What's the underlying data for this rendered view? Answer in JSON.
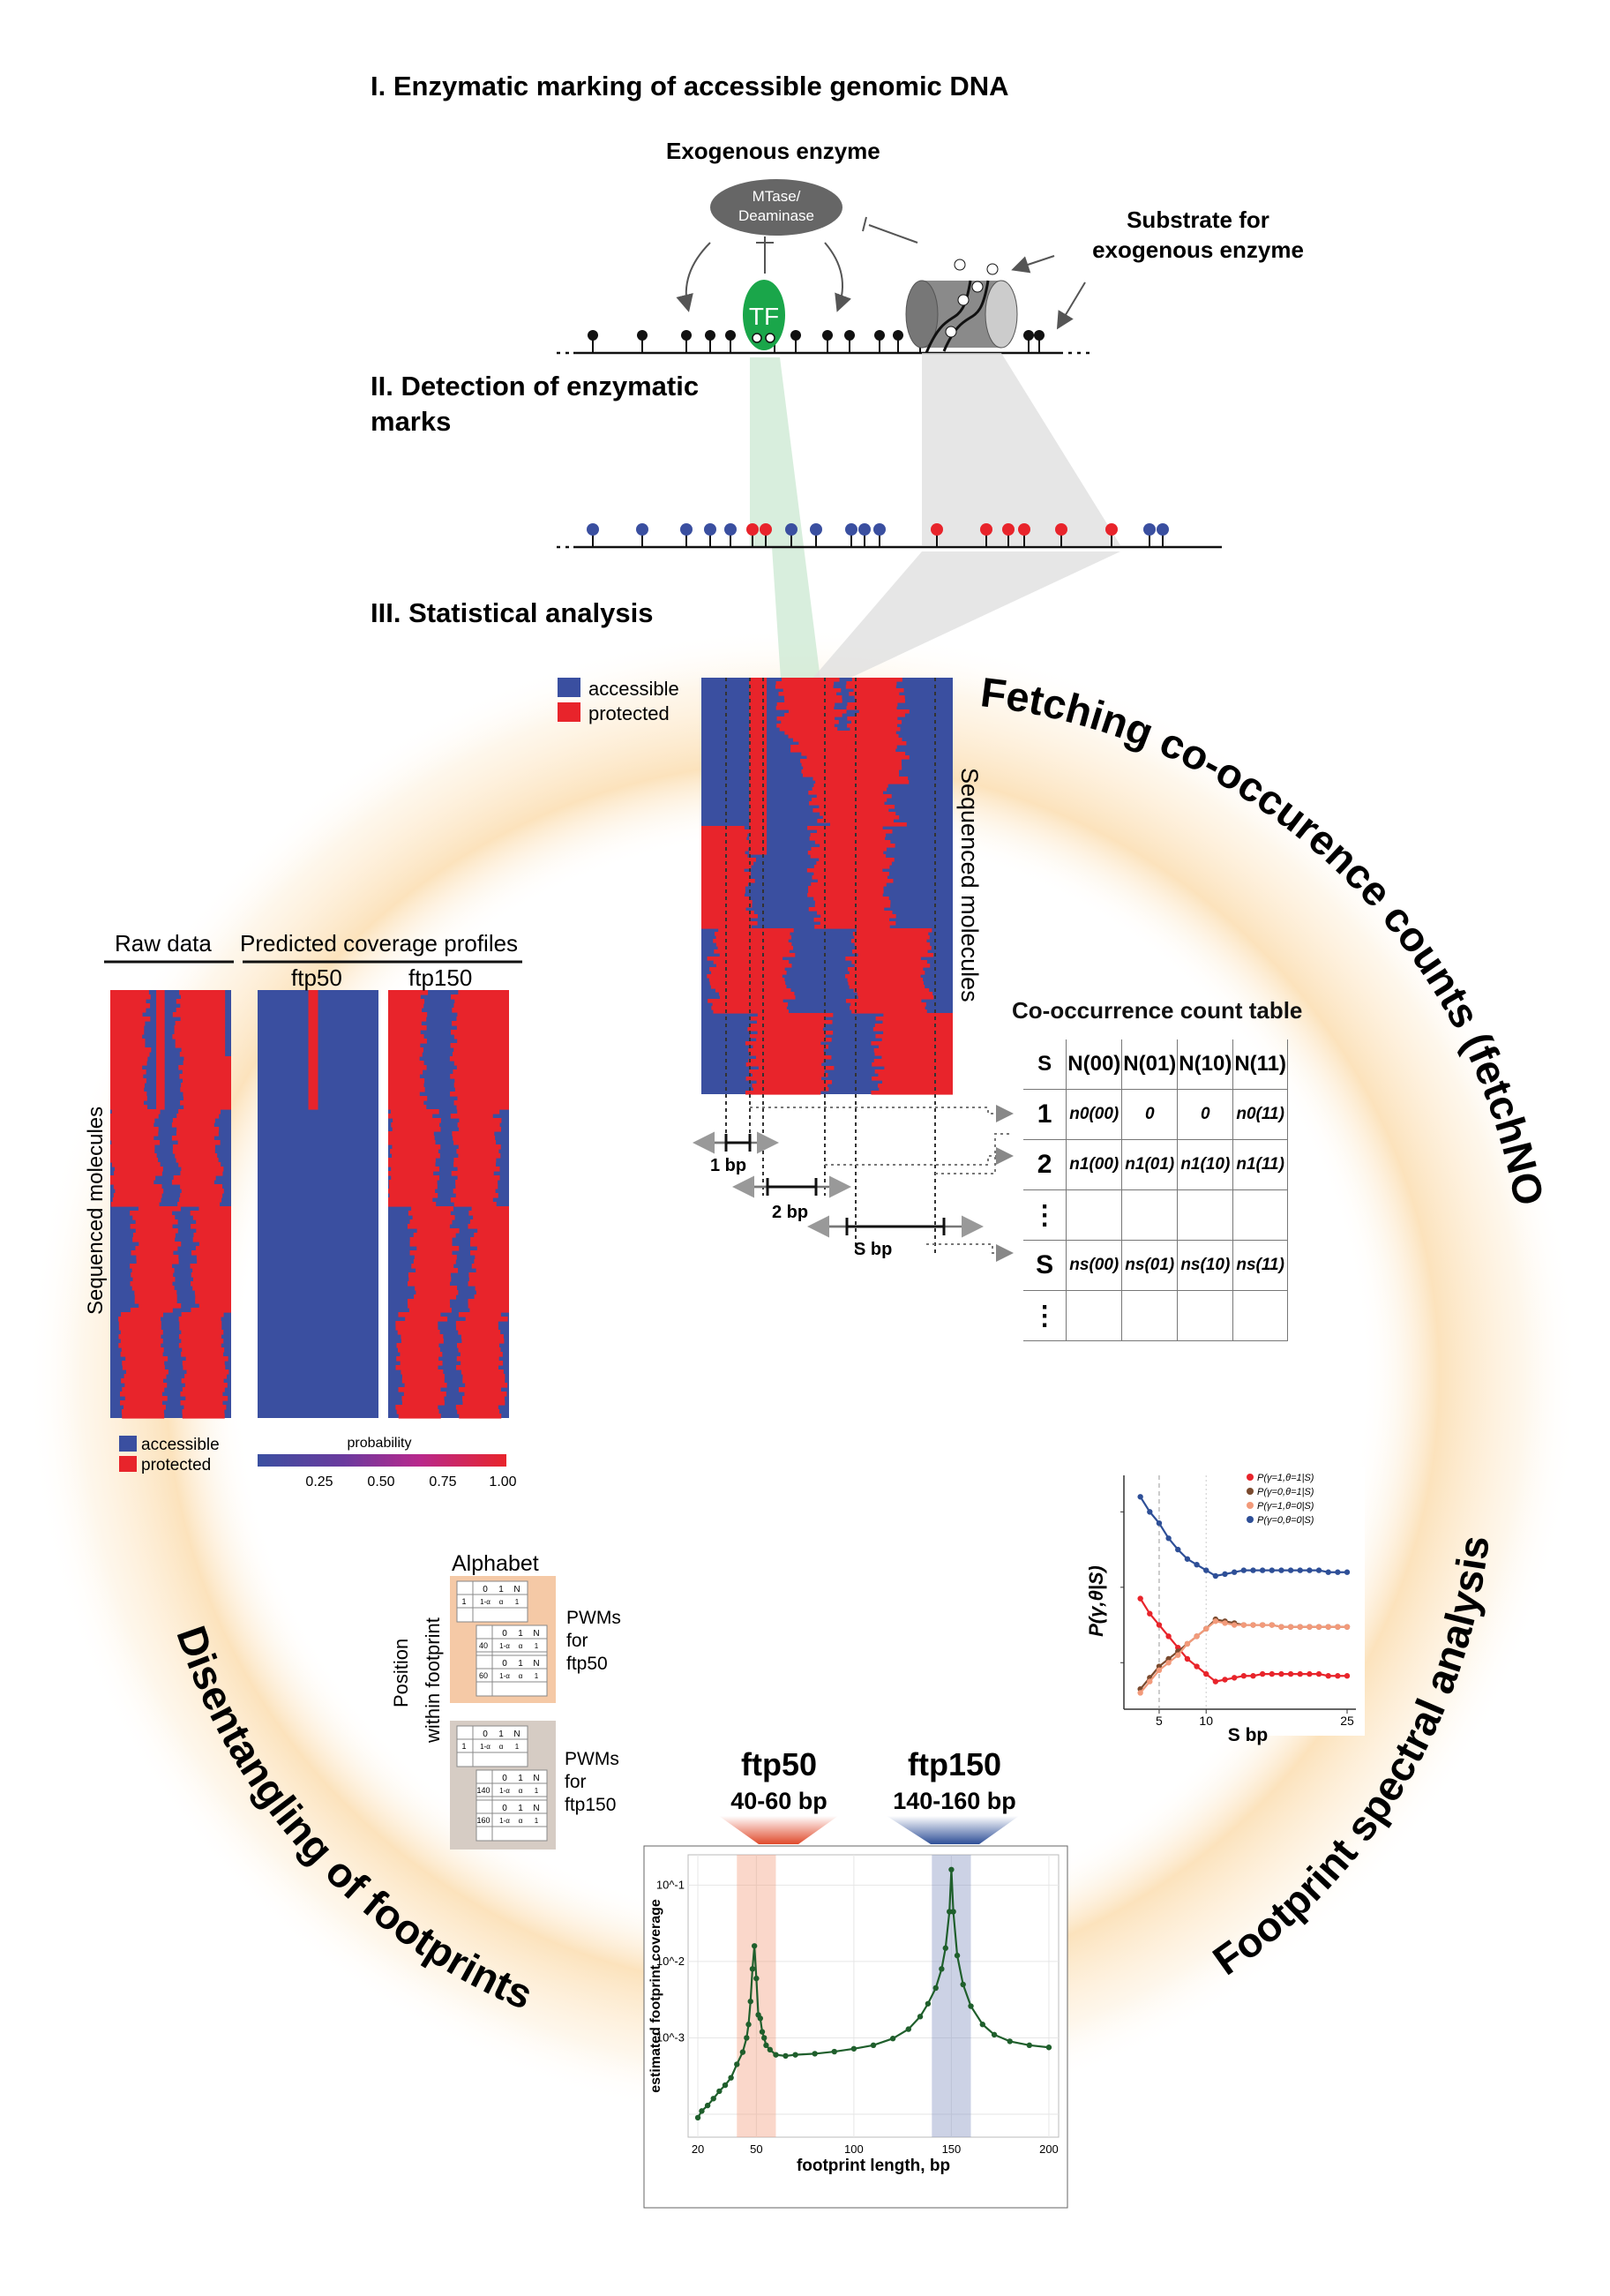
{
  "sections": {
    "step1": "I. Enzymatic marking of accessible genomic DNA",
    "step2_line1": "II. Detection of enzymatic",
    "step2_line2": "marks",
    "step3": "III. Statistical analysis"
  },
  "enzyme": {
    "title": "Exogenous enzyme",
    "line1": "MTase/",
    "line2": "Deaminase",
    "tf_label": "TF",
    "substrate_line1": "Substrate for",
    "substrate_line2": "exogenous enzyme"
  },
  "colors": {
    "accessible": "#3a4fa0",
    "protected": "#e8242b",
    "tf_green": "#1aa64a",
    "glow": "#fbd9a6",
    "fit_green": "#1f5f2c"
  },
  "heatmap": {
    "legend_accessible": "accessible",
    "legend_protected": "protected",
    "ylabel": "Sequenced molecules",
    "dist_1": "1 bp",
    "dist_2": "2 bp",
    "dist_s": "S bp"
  },
  "count_table": {
    "title": "Co-occurrence count table",
    "header": [
      "S",
      "N(00)",
      "N(01)",
      "N(10)",
      "N(11)"
    ],
    "rows": [
      [
        "1",
        "n0(00)",
        "0",
        "0",
        "n0(11)"
      ],
      [
        "2",
        "n1(00)",
        "n1(01)",
        "n1(10)",
        "n1(11)"
      ],
      [
        "⋮",
        "",
        "",
        "",
        ""
      ],
      [
        "S",
        "ns(00)",
        "ns(01)",
        "ns(10)",
        "ns(11)"
      ],
      [
        "⋮",
        "",
        "",
        "",
        ""
      ]
    ]
  },
  "arcs": {
    "fetch": "Fetching co-occurence counts (fetchNOMe)",
    "spectral": "Footprint spectral analysis",
    "disentangle": "Disentangling of footprints"
  },
  "coverage": {
    "raw_title": "Raw data",
    "pred_title": "Predicted coverage profiles",
    "col1": "ftp50",
    "col2": "ftp150",
    "ylabel": "Sequenced molecules",
    "legend_accessible": "accessible",
    "legend_protected": "protected",
    "colorbar_title": "probability",
    "colorbar_ticks": [
      "0.25",
      "0.50",
      "0.75",
      "1.00"
    ]
  },
  "pwm": {
    "alphabet": "Alphabet",
    "position_label_1": "Position",
    "position_label_2": "within footprint",
    "ftp50_1": "PWMs",
    "ftp50_2": "for",
    "ftp50_3": "ftp50",
    "ftp150_1": "PWMs",
    "ftp150_2": "for",
    "ftp150_3": "ftp150",
    "cols": [
      "0",
      "1",
      "N"
    ],
    "row_vals": [
      "1-α",
      "α",
      "1"
    ],
    "pos_50": [
      "1",
      "40",
      "60"
    ],
    "pos_150": [
      "1",
      "140",
      "160"
    ]
  },
  "spectrum_labels": {
    "ftp50_name": "ftp50",
    "ftp50_range": "40-60 bp",
    "ftp150_name": "ftp150",
    "ftp150_range": "140-160 bp"
  },
  "chart_data": [
    {
      "type": "line",
      "xlabel": "S bp",
      "ylabel": "P(γ,θ|S)",
      "xlim": [
        2,
        25
      ],
      "xticks": [
        "5",
        "10",
        "25"
      ],
      "vline": 5,
      "legend_position": "top-right",
      "x": [
        3,
        4,
        5,
        6,
        7,
        8,
        9,
        10,
        11,
        12,
        13,
        14,
        15,
        16,
        17,
        18,
        19,
        20,
        21,
        22,
        23,
        24,
        25
      ],
      "series": [
        {
          "name": "P(γ=1,θ=1|S)",
          "color": "#e8242b",
          "values": [
            0.37,
            0.33,
            0.3,
            0.27,
            0.24,
            0.21,
            0.19,
            0.17,
            0.15,
            0.155,
            0.16,
            0.165,
            0.165,
            0.17,
            0.17,
            0.17,
            0.17,
            0.17,
            0.17,
            0.17,
            0.165,
            0.165,
            0.165
          ]
        },
        {
          "name": "P(γ=0,θ=1|S)",
          "color": "#7a4a2e",
          "values": [
            0.13,
            0.16,
            0.19,
            0.21,
            0.23,
            0.25,
            0.27,
            0.29,
            0.315,
            0.31,
            0.305,
            0.3,
            0.3,
            0.3,
            0.3,
            0.295,
            0.295,
            0.295,
            0.295,
            0.295,
            0.295,
            0.295,
            0.295
          ]
        },
        {
          "name": "P(γ=1,θ=0|S)",
          "color": "#f29a7a",
          "values": [
            0.12,
            0.15,
            0.18,
            0.2,
            0.22,
            0.25,
            0.27,
            0.29,
            0.31,
            0.305,
            0.3,
            0.3,
            0.3,
            0.3,
            0.3,
            0.295,
            0.295,
            0.295,
            0.295,
            0.295,
            0.295,
            0.295,
            0.295
          ]
        },
        {
          "name": "P(γ=0,θ=0|S)",
          "color": "#2e4f97",
          "values": [
            0.64,
            0.6,
            0.57,
            0.53,
            0.5,
            0.475,
            0.46,
            0.445,
            0.43,
            0.435,
            0.44,
            0.445,
            0.445,
            0.445,
            0.445,
            0.445,
            0.445,
            0.445,
            0.445,
            0.445,
            0.44,
            0.44,
            0.44
          ]
        }
      ]
    },
    {
      "type": "line",
      "xlabel": "footprint length, bp",
      "ylabel": "estimated footprint coverage",
      "log_scale_y": true,
      "xlim": [
        15,
        205
      ],
      "ylim": [
        5e-05,
        0.25
      ],
      "xticks": [
        "20",
        "50",
        "100",
        "150",
        "200"
      ],
      "yticks": [
        "10^-1",
        "10^-2",
        "10^-3"
      ],
      "grid": true,
      "shaded_ranges": [
        [
          40,
          60
        ],
        [
          140,
          160
        ]
      ],
      "series": [
        {
          "name": "",
          "points": [
            [
              20,
              9e-05
            ],
            [
              22,
              0.00011
            ],
            [
              25,
              0.00013
            ],
            [
              28,
              0.00016
            ],
            [
              31,
              0.0002
            ],
            [
              34,
              0.00024
            ],
            [
              37,
              0.0003
            ],
            [
              40,
              0.00045
            ],
            [
              43,
              0.00065
            ],
            [
              45,
              0.001
            ],
            [
              46,
              0.0015
            ],
            [
              47,
              0.003
            ],
            [
              48,
              0.008
            ],
            [
              49,
              0.016
            ],
            [
              50,
              0.006
            ],
            [
              51,
              0.002
            ],
            [
              52,
              0.0018
            ],
            [
              53,
              0.0012
            ],
            [
              54,
              0.001
            ],
            [
              55,
              0.0008
            ],
            [
              57,
              0.0007
            ],
            [
              60,
              0.0006
            ],
            [
              65,
              0.00058
            ],
            [
              70,
              0.0006
            ],
            [
              80,
              0.00062
            ],
            [
              90,
              0.00066
            ],
            [
              100,
              0.00072
            ],
            [
              110,
              0.0008
            ],
            [
              120,
              0.00098
            ],
            [
              128,
              0.0013
            ],
            [
              134,
              0.0019
            ],
            [
              138,
              0.0028
            ],
            [
              142,
              0.0045
            ],
            [
              145,
              0.008
            ],
            [
              147,
              0.015
            ],
            [
              149,
              0.045
            ],
            [
              150,
              0.16
            ],
            [
              151,
              0.045
            ],
            [
              153,
              0.012
            ],
            [
              156,
              0.005
            ],
            [
              160,
              0.0026
            ],
            [
              166,
              0.0015
            ],
            [
              172,
              0.0011
            ],
            [
              180,
              0.0009
            ],
            [
              190,
              0.0008
            ],
            [
              200,
              0.00075
            ]
          ]
        }
      ]
    }
  ]
}
